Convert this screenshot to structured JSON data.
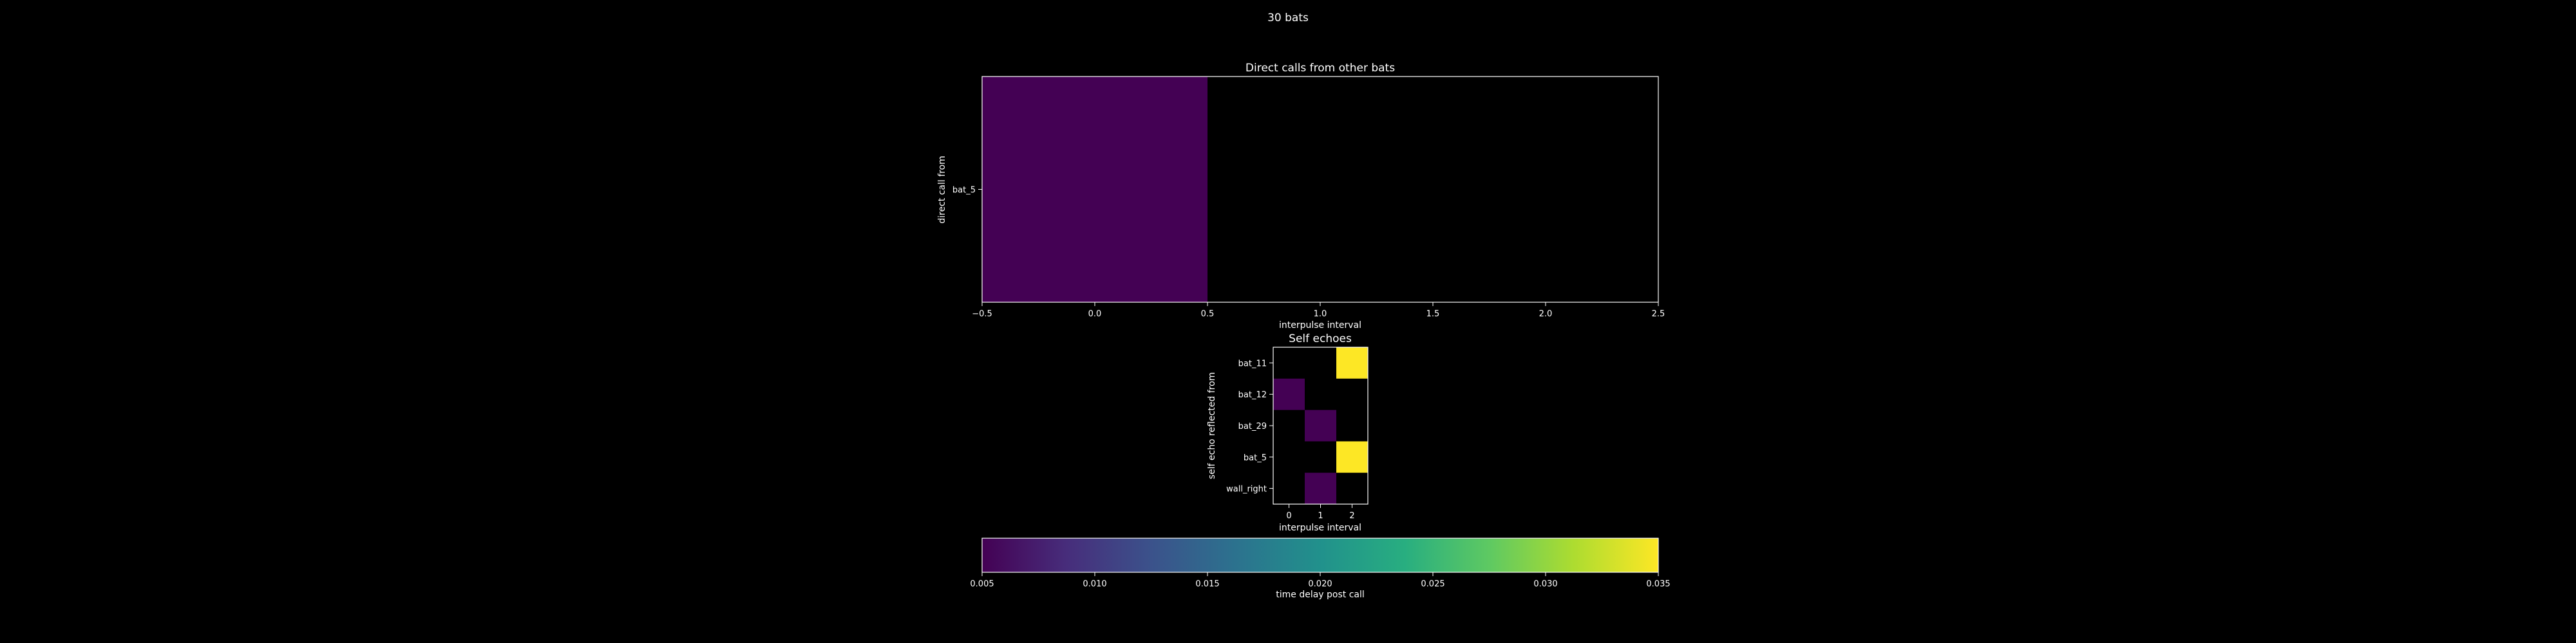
{
  "figure": {
    "suptitle": "30 bats",
    "background": "#000000",
    "foreground": "#ffffff"
  },
  "chart_data": [
    {
      "type": "heatmap",
      "title": "Direct calls from other bats",
      "xlabel": "interpulse interval",
      "ylabel": "direct call from",
      "x_ticks": [
        "−0.5",
        "0.0",
        "0.5",
        "1.0",
        "1.5",
        "2.0",
        "2.5"
      ],
      "xlim": [
        -0.5,
        2.5
      ],
      "rows": [
        "bat_5"
      ],
      "columns": [
        0,
        1,
        2
      ],
      "values": [
        [
          0.005,
          null,
          null
        ]
      ],
      "grid": false
    },
    {
      "type": "heatmap",
      "title": "Self echoes",
      "xlabel": "interpulse interval",
      "ylabel": "self echo reflected from",
      "x_ticks": [
        "0",
        "1",
        "2"
      ],
      "rows": [
        "bat_11",
        "bat_12",
        "bat_29",
        "bat_5",
        "wall_right"
      ],
      "columns": [
        0,
        1,
        2
      ],
      "values": [
        [
          null,
          null,
          0.035
        ],
        [
          0.005,
          null,
          null
        ],
        [
          null,
          0.005,
          null
        ],
        [
          null,
          null,
          0.035
        ],
        [
          null,
          0.005,
          null
        ]
      ],
      "grid": false
    }
  ],
  "colorbar": {
    "label": "time delay post call",
    "colormap": "viridis",
    "min": 0.005,
    "max": 0.035,
    "ticks": [
      "0.005",
      "0.010",
      "0.015",
      "0.020",
      "0.025",
      "0.030",
      "0.035"
    ]
  }
}
